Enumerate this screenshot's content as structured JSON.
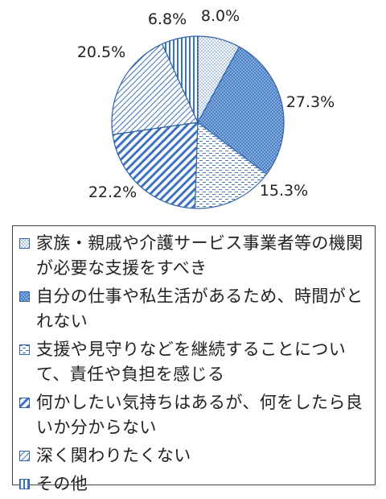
{
  "chart_data": {
    "type": "pie",
    "title": "",
    "start_angle_deg": 0,
    "direction": "clockwise",
    "legend_position": "bottom",
    "slices": [
      {
        "name": "家族・親戚や介護サービス事業者等の機関が必要な支援をすべき",
        "value": 8.0,
        "label": "8.0%",
        "pattern": "dots-fine",
        "color": "#3d74c0"
      },
      {
        "name": "自分の仕事や私生活があるため、時間がとれない",
        "value": 27.3,
        "label": "27.3%",
        "pattern": "dots-dense",
        "color": "#4a80c8"
      },
      {
        "name": "支援や見守りなどを継続することについて、責任や負担を感じる",
        "value": 15.3,
        "label": "15.3%",
        "pattern": "dashes",
        "color": "#3d74c0"
      },
      {
        "name": "何かしたい気持ちはあるが、何をしたら良いか分からない",
        "value": 22.2,
        "label": "22.2%",
        "pattern": "diagonal-wide",
        "color": "#3d74c0"
      },
      {
        "name": "深く関わりたくない",
        "value": 20.5,
        "label": "20.5%",
        "pattern": "diagonal-fine",
        "color": "#3d74c0"
      },
      {
        "name": "その他",
        "value": 6.8,
        "label": "6.8%",
        "pattern": "vertical",
        "color": "#3d74c0"
      }
    ]
  }
}
